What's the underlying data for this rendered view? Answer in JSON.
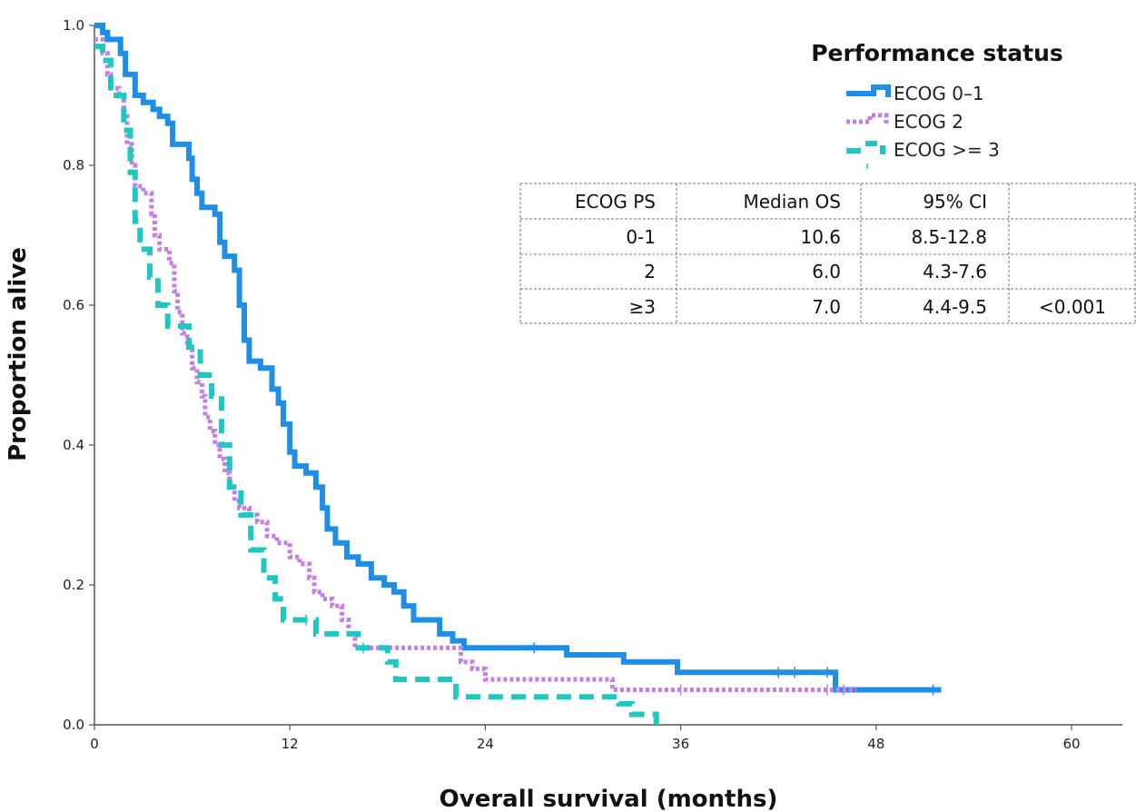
{
  "chart_data": {
    "type": "line",
    "subtype": "kaplan-meier",
    "xlabel": "Overall survival (months)",
    "ylabel": "Proportion alive",
    "xlim": [
      0,
      60
    ],
    "ylim": [
      0,
      1.0
    ],
    "x_ticks": [
      0,
      12,
      24,
      36,
      48,
      60
    ],
    "y_ticks": [
      0.0,
      0.2,
      0.4,
      0.6,
      0.8,
      1.0
    ],
    "x_tick_labels": [
      "0",
      "12",
      "24",
      "36",
      "48",
      "60"
    ],
    "y_tick_labels": [
      "0.0",
      "0.2",
      "0.4",
      "0.6",
      "0.8",
      "1.0"
    ],
    "grid": false,
    "legend": {
      "title": "Performance status",
      "position": "top-right",
      "entries": [
        "ECOG 0–1",
        "ECOG 2",
        "ECOG >= 3"
      ]
    },
    "series": [
      {
        "name": "ECOG 0–1",
        "color": "#1f8ee6",
        "style": "solid",
        "points": [
          [
            0,
            1.0
          ],
          [
            0.5,
            1.0
          ],
          [
            0.5,
            0.99
          ],
          [
            0.8,
            0.99
          ],
          [
            0.8,
            0.98
          ],
          [
            1.6,
            0.98
          ],
          [
            1.6,
            0.96
          ],
          [
            1.9,
            0.96
          ],
          [
            1.9,
            0.93
          ],
          [
            2.5,
            0.93
          ],
          [
            2.5,
            0.9
          ],
          [
            3.0,
            0.9
          ],
          [
            3.0,
            0.89
          ],
          [
            3.6,
            0.89
          ],
          [
            3.6,
            0.88
          ],
          [
            4.0,
            0.88
          ],
          [
            4.0,
            0.87
          ],
          [
            4.5,
            0.87
          ],
          [
            4.5,
            0.86
          ],
          [
            4.8,
            0.86
          ],
          [
            4.8,
            0.83
          ],
          [
            5.8,
            0.83
          ],
          [
            5.8,
            0.81
          ],
          [
            6.0,
            0.81
          ],
          [
            6.0,
            0.78
          ],
          [
            6.3,
            0.78
          ],
          [
            6.3,
            0.76
          ],
          [
            6.6,
            0.76
          ],
          [
            6.6,
            0.74
          ],
          [
            7.4,
            0.74
          ],
          [
            7.4,
            0.73
          ],
          [
            7.7,
            0.73
          ],
          [
            7.7,
            0.69
          ],
          [
            8.0,
            0.69
          ],
          [
            8.0,
            0.67
          ],
          [
            8.6,
            0.67
          ],
          [
            8.6,
            0.65
          ],
          [
            8.9,
            0.65
          ],
          [
            8.9,
            0.6
          ],
          [
            9.2,
            0.6
          ],
          [
            9.2,
            0.55
          ],
          [
            9.5,
            0.55
          ],
          [
            9.5,
            0.52
          ],
          [
            10.2,
            0.52
          ],
          [
            10.2,
            0.51
          ],
          [
            10.9,
            0.51
          ],
          [
            10.9,
            0.48
          ],
          [
            11.3,
            0.48
          ],
          [
            11.3,
            0.46
          ],
          [
            11.6,
            0.46
          ],
          [
            11.6,
            0.43
          ],
          [
            12.0,
            0.43
          ],
          [
            12.0,
            0.39
          ],
          [
            12.3,
            0.39
          ],
          [
            12.3,
            0.37
          ],
          [
            13.0,
            0.37
          ],
          [
            13.0,
            0.36
          ],
          [
            13.6,
            0.36
          ],
          [
            13.6,
            0.34
          ],
          [
            14.0,
            0.34
          ],
          [
            14.0,
            0.31
          ],
          [
            14.3,
            0.31
          ],
          [
            14.3,
            0.28
          ],
          [
            14.8,
            0.28
          ],
          [
            14.8,
            0.26
          ],
          [
            15.5,
            0.26
          ],
          [
            15.5,
            0.24
          ],
          [
            16.2,
            0.24
          ],
          [
            16.2,
            0.23
          ],
          [
            17.0,
            0.23
          ],
          [
            17.0,
            0.21
          ],
          [
            17.8,
            0.21
          ],
          [
            17.8,
            0.2
          ],
          [
            18.4,
            0.2
          ],
          [
            18.4,
            0.19
          ],
          [
            19.0,
            0.19
          ],
          [
            19.0,
            0.17
          ],
          [
            19.6,
            0.17
          ],
          [
            19.6,
            0.15
          ],
          [
            21.2,
            0.15
          ],
          [
            21.2,
            0.13
          ],
          [
            22.0,
            0.13
          ],
          [
            22.0,
            0.12
          ],
          [
            22.7,
            0.12
          ],
          [
            22.7,
            0.11
          ],
          [
            29.0,
            0.11
          ],
          [
            29.0,
            0.1
          ],
          [
            32.5,
            0.1
          ],
          [
            32.5,
            0.09
          ],
          [
            35.8,
            0.09
          ],
          [
            35.8,
            0.075
          ],
          [
            45.5,
            0.075
          ],
          [
            45.5,
            0.05
          ],
          [
            52.0,
            0.05
          ]
        ],
        "censor_marks": [
          [
            27.0,
            0.11
          ],
          [
            42.0,
            0.075
          ],
          [
            43.0,
            0.075
          ],
          [
            45.0,
            0.075
          ],
          [
            51.5,
            0.05
          ]
        ]
      },
      {
        "name": "ECOG 2",
        "color": "#c47ee8",
        "style": "dotted",
        "points": [
          [
            0,
            0.98
          ],
          [
            0.5,
            0.98
          ],
          [
            0.5,
            0.96
          ],
          [
            0.8,
            0.96
          ],
          [
            0.8,
            0.93
          ],
          [
            1.0,
            0.93
          ],
          [
            1.0,
            0.91
          ],
          [
            1.5,
            0.91
          ],
          [
            1.5,
            0.9
          ],
          [
            1.8,
            0.9
          ],
          [
            1.8,
            0.87
          ],
          [
            2.0,
            0.87
          ],
          [
            2.0,
            0.83
          ],
          [
            2.3,
            0.83
          ],
          [
            2.3,
            0.8
          ],
          [
            2.5,
            0.8
          ],
          [
            2.5,
            0.77
          ],
          [
            3.0,
            0.77
          ],
          [
            3.0,
            0.76
          ],
          [
            3.5,
            0.76
          ],
          [
            3.5,
            0.73
          ],
          [
            3.7,
            0.73
          ],
          [
            3.7,
            0.7
          ],
          [
            4.0,
            0.7
          ],
          [
            4.0,
            0.68
          ],
          [
            4.6,
            0.68
          ],
          [
            4.6,
            0.66
          ],
          [
            4.9,
            0.66
          ],
          [
            4.9,
            0.62
          ],
          [
            5.1,
            0.62
          ],
          [
            5.1,
            0.59
          ],
          [
            5.4,
            0.59
          ],
          [
            5.4,
            0.56
          ],
          [
            5.7,
            0.56
          ],
          [
            5.7,
            0.54
          ],
          [
            6.0,
            0.54
          ],
          [
            6.0,
            0.51
          ],
          [
            6.3,
            0.51
          ],
          [
            6.3,
            0.49
          ],
          [
            6.6,
            0.49
          ],
          [
            6.6,
            0.47
          ],
          [
            6.8,
            0.47
          ],
          [
            6.8,
            0.44
          ],
          [
            7.1,
            0.44
          ],
          [
            7.1,
            0.42
          ],
          [
            7.4,
            0.42
          ],
          [
            7.4,
            0.4
          ],
          [
            7.7,
            0.4
          ],
          [
            7.7,
            0.38
          ],
          [
            8.0,
            0.38
          ],
          [
            8.0,
            0.36
          ],
          [
            8.3,
            0.36
          ],
          [
            8.3,
            0.34
          ],
          [
            8.6,
            0.34
          ],
          [
            8.6,
            0.32
          ],
          [
            8.9,
            0.32
          ],
          [
            8.9,
            0.31
          ],
          [
            9.5,
            0.31
          ],
          [
            9.5,
            0.3
          ],
          [
            10.0,
            0.3
          ],
          [
            10.0,
            0.29
          ],
          [
            10.6,
            0.29
          ],
          [
            10.6,
            0.27
          ],
          [
            11.2,
            0.27
          ],
          [
            11.2,
            0.26
          ],
          [
            12.0,
            0.26
          ],
          [
            12.0,
            0.24
          ],
          [
            12.6,
            0.24
          ],
          [
            12.6,
            0.23
          ],
          [
            13.2,
            0.23
          ],
          [
            13.2,
            0.21
          ],
          [
            13.5,
            0.21
          ],
          [
            13.5,
            0.19
          ],
          [
            14.0,
            0.19
          ],
          [
            14.0,
            0.18
          ],
          [
            14.6,
            0.18
          ],
          [
            14.6,
            0.17
          ],
          [
            15.2,
            0.17
          ],
          [
            15.2,
            0.15
          ],
          [
            15.6,
            0.15
          ],
          [
            15.6,
            0.13
          ],
          [
            16.0,
            0.13
          ],
          [
            16.0,
            0.11
          ],
          [
            22.5,
            0.11
          ],
          [
            22.5,
            0.09
          ],
          [
            23.2,
            0.09
          ],
          [
            23.2,
            0.08
          ],
          [
            24.0,
            0.08
          ],
          [
            24.0,
            0.065
          ],
          [
            31.8,
            0.065
          ],
          [
            31.8,
            0.05
          ],
          [
            46.8,
            0.05
          ]
        ],
        "censor_marks": [
          [
            36.0,
            0.05
          ],
          [
            45.0,
            0.05
          ],
          [
            46.0,
            0.05
          ]
        ]
      },
      {
        "name": "ECOG >= 3",
        "color": "#1ec7c0",
        "style": "dashed",
        "points": [
          [
            0,
            0.97
          ],
          [
            0.5,
            0.97
          ],
          [
            0.5,
            0.95
          ],
          [
            1.0,
            0.95
          ],
          [
            1.0,
            0.9
          ],
          [
            1.8,
            0.9
          ],
          [
            1.8,
            0.85
          ],
          [
            2.2,
            0.85
          ],
          [
            2.2,
            0.79
          ],
          [
            2.5,
            0.79
          ],
          [
            2.5,
            0.72
          ],
          [
            2.8,
            0.72
          ],
          [
            2.8,
            0.68
          ],
          [
            3.4,
            0.68
          ],
          [
            3.4,
            0.64
          ],
          [
            3.9,
            0.64
          ],
          [
            3.9,
            0.6
          ],
          [
            4.5,
            0.6
          ],
          [
            4.5,
            0.57
          ],
          [
            5.8,
            0.57
          ],
          [
            5.8,
            0.54
          ],
          [
            6.5,
            0.54
          ],
          [
            6.5,
            0.5
          ],
          [
            7.2,
            0.5
          ],
          [
            7.2,
            0.47
          ],
          [
            7.8,
            0.47
          ],
          [
            7.8,
            0.4
          ],
          [
            8.3,
            0.4
          ],
          [
            8.3,
            0.34
          ],
          [
            9.0,
            0.34
          ],
          [
            9.0,
            0.3
          ],
          [
            9.6,
            0.3
          ],
          [
            9.6,
            0.25
          ],
          [
            10.4,
            0.25
          ],
          [
            10.4,
            0.21
          ],
          [
            11.1,
            0.21
          ],
          [
            11.1,
            0.18
          ],
          [
            11.6,
            0.18
          ],
          [
            11.6,
            0.15
          ],
          [
            13.6,
            0.15
          ],
          [
            13.6,
            0.13
          ],
          [
            16.2,
            0.13
          ],
          [
            16.2,
            0.11
          ],
          [
            18.0,
            0.11
          ],
          [
            18.0,
            0.09
          ],
          [
            18.5,
            0.09
          ],
          [
            18.5,
            0.065
          ],
          [
            22.2,
            0.065
          ],
          [
            22.2,
            0.04
          ],
          [
            32.2,
            0.04
          ],
          [
            32.2,
            0.03
          ],
          [
            33.0,
            0.03
          ],
          [
            33.0,
            0.015
          ],
          [
            34.5,
            0.015
          ],
          [
            34.5,
            0.0
          ]
        ],
        "censor_marks": [
          [
            13.0,
            0.15
          ],
          [
            16.5,
            0.11
          ]
        ]
      }
    ],
    "table": {
      "headers": [
        "ECOG PS",
        "Median OS",
        "95% CI",
        ""
      ],
      "rows": [
        [
          "0-1",
          "10.6",
          "8.5-12.8",
          ""
        ],
        [
          "2",
          "6.0",
          "4.3-7.6",
          ""
        ],
        [
          "≥3",
          "7.0",
          "4.4-9.5",
          "<0.001"
        ]
      ]
    }
  }
}
